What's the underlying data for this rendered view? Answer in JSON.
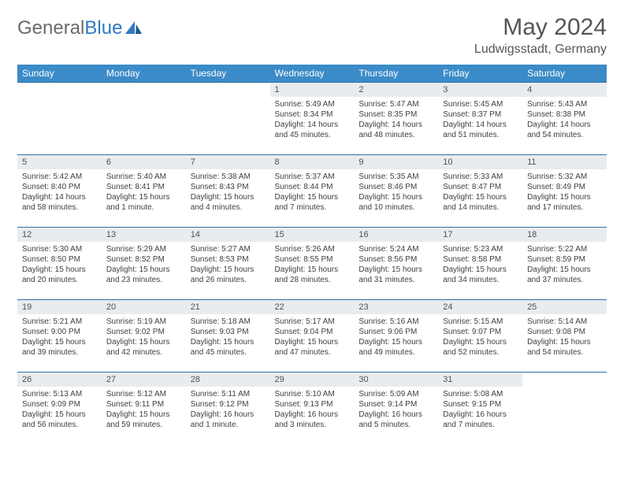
{
  "brand": {
    "part1": "General",
    "part2": "Blue"
  },
  "title": "May 2024",
  "location": "Ludwigsstadt, Germany",
  "colors": {
    "header_bg": "#3b8bc8",
    "header_text": "#ffffff",
    "row_border": "#2f6fa3",
    "daynum_bg": "#e9ecef",
    "text": "#404040",
    "logo_gray": "#6a6a6a",
    "logo_blue": "#2f7ac0",
    "page_bg": "#ffffff"
  },
  "fonts": {
    "title_size_pt": 22,
    "location_size_pt": 12,
    "header_size_pt": 9,
    "cell_size_pt": 7.5,
    "daynum_size_pt": 8.5
  },
  "layout": {
    "columns": 7,
    "rows": 5,
    "first_weekday_index": 3
  },
  "weekdays": [
    "Sunday",
    "Monday",
    "Tuesday",
    "Wednesday",
    "Thursday",
    "Friday",
    "Saturday"
  ],
  "days": [
    {
      "n": 1,
      "sr": "5:49 AM",
      "ss": "8:34 PM",
      "dl": "14 hours and 45 minutes."
    },
    {
      "n": 2,
      "sr": "5:47 AM",
      "ss": "8:35 PM",
      "dl": "14 hours and 48 minutes."
    },
    {
      "n": 3,
      "sr": "5:45 AM",
      "ss": "8:37 PM",
      "dl": "14 hours and 51 minutes."
    },
    {
      "n": 4,
      "sr": "5:43 AM",
      "ss": "8:38 PM",
      "dl": "14 hours and 54 minutes."
    },
    {
      "n": 5,
      "sr": "5:42 AM",
      "ss": "8:40 PM",
      "dl": "14 hours and 58 minutes."
    },
    {
      "n": 6,
      "sr": "5:40 AM",
      "ss": "8:41 PM",
      "dl": "15 hours and 1 minute."
    },
    {
      "n": 7,
      "sr": "5:38 AM",
      "ss": "8:43 PM",
      "dl": "15 hours and 4 minutes."
    },
    {
      "n": 8,
      "sr": "5:37 AM",
      "ss": "8:44 PM",
      "dl": "15 hours and 7 minutes."
    },
    {
      "n": 9,
      "sr": "5:35 AM",
      "ss": "8:46 PM",
      "dl": "15 hours and 10 minutes."
    },
    {
      "n": 10,
      "sr": "5:33 AM",
      "ss": "8:47 PM",
      "dl": "15 hours and 14 minutes."
    },
    {
      "n": 11,
      "sr": "5:32 AM",
      "ss": "8:49 PM",
      "dl": "15 hours and 17 minutes."
    },
    {
      "n": 12,
      "sr": "5:30 AM",
      "ss": "8:50 PM",
      "dl": "15 hours and 20 minutes."
    },
    {
      "n": 13,
      "sr": "5:29 AM",
      "ss": "8:52 PM",
      "dl": "15 hours and 23 minutes."
    },
    {
      "n": 14,
      "sr": "5:27 AM",
      "ss": "8:53 PM",
      "dl": "15 hours and 26 minutes."
    },
    {
      "n": 15,
      "sr": "5:26 AM",
      "ss": "8:55 PM",
      "dl": "15 hours and 28 minutes."
    },
    {
      "n": 16,
      "sr": "5:24 AM",
      "ss": "8:56 PM",
      "dl": "15 hours and 31 minutes."
    },
    {
      "n": 17,
      "sr": "5:23 AM",
      "ss": "8:58 PM",
      "dl": "15 hours and 34 minutes."
    },
    {
      "n": 18,
      "sr": "5:22 AM",
      "ss": "8:59 PM",
      "dl": "15 hours and 37 minutes."
    },
    {
      "n": 19,
      "sr": "5:21 AM",
      "ss": "9:00 PM",
      "dl": "15 hours and 39 minutes."
    },
    {
      "n": 20,
      "sr": "5:19 AM",
      "ss": "9:02 PM",
      "dl": "15 hours and 42 minutes."
    },
    {
      "n": 21,
      "sr": "5:18 AM",
      "ss": "9:03 PM",
      "dl": "15 hours and 45 minutes."
    },
    {
      "n": 22,
      "sr": "5:17 AM",
      "ss": "9:04 PM",
      "dl": "15 hours and 47 minutes."
    },
    {
      "n": 23,
      "sr": "5:16 AM",
      "ss": "9:06 PM",
      "dl": "15 hours and 49 minutes."
    },
    {
      "n": 24,
      "sr": "5:15 AM",
      "ss": "9:07 PM",
      "dl": "15 hours and 52 minutes."
    },
    {
      "n": 25,
      "sr": "5:14 AM",
      "ss": "9:08 PM",
      "dl": "15 hours and 54 minutes."
    },
    {
      "n": 26,
      "sr": "5:13 AM",
      "ss": "9:09 PM",
      "dl": "15 hours and 56 minutes."
    },
    {
      "n": 27,
      "sr": "5:12 AM",
      "ss": "9:11 PM",
      "dl": "15 hours and 59 minutes."
    },
    {
      "n": 28,
      "sr": "5:11 AM",
      "ss": "9:12 PM",
      "dl": "16 hours and 1 minute."
    },
    {
      "n": 29,
      "sr": "5:10 AM",
      "ss": "9:13 PM",
      "dl": "16 hours and 3 minutes."
    },
    {
      "n": 30,
      "sr": "5:09 AM",
      "ss": "9:14 PM",
      "dl": "16 hours and 5 minutes."
    },
    {
      "n": 31,
      "sr": "5:08 AM",
      "ss": "9:15 PM",
      "dl": "16 hours and 7 minutes."
    }
  ],
  "labels": {
    "sunrise": "Sunrise:",
    "sunset": "Sunset:",
    "daylight": "Daylight:"
  }
}
